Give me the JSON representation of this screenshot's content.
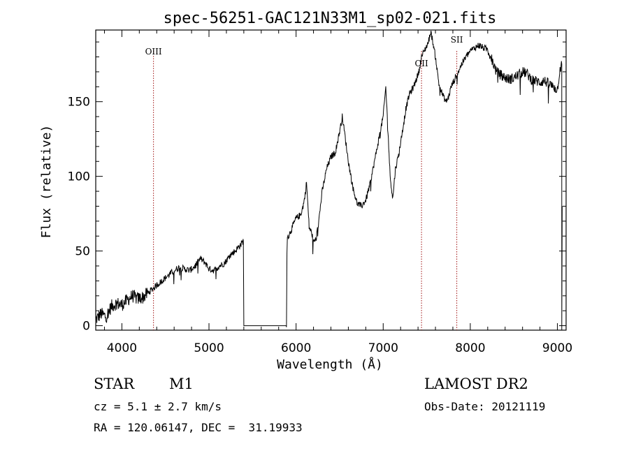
{
  "chart_data": {
    "type": "line",
    "title": "spec-56251-GAC121N33M1_sp02-021.fits",
    "xlabel": "Wavelength (Å)",
    "ylabel": "Flux (relative)",
    "xlim": [
      3700,
      9100
    ],
    "ylim": [
      -3,
      198
    ],
    "x_ticks": [
      4000,
      5000,
      6000,
      7000,
      8000,
      9000
    ],
    "y_ticks": [
      0,
      50,
      100,
      150
    ],
    "x_tick_labels": [
      "4000",
      "5000",
      "6000",
      "7000",
      "8000",
      "9000"
    ],
    "y_tick_labels": [
      "0",
      "50",
      "100",
      "150"
    ],
    "series": [
      {
        "x": [
          3700,
          3760,
          3820,
          3880,
          3940,
          4000,
          4060,
          4120,
          4180,
          4240,
          4300,
          4360,
          4420,
          4480,
          4540,
          4600,
          4660,
          4720,
          4780,
          4840,
          4900,
          4960,
          5000,
          5060,
          5120,
          5180,
          5240,
          5300,
          5360,
          5385,
          5395,
          5400,
          5500,
          5600,
          5700,
          5800,
          5890,
          5895,
          5900,
          5950,
          6000,
          6050,
          6080,
          6100,
          6120,
          6150,
          6180,
          6200,
          6230,
          6260,
          6300,
          6350,
          6400,
          6450,
          6500,
          6530,
          6560,
          6600,
          6650,
          6700,
          6750,
          6800,
          6850,
          6900,
          6950,
          7000,
          7030,
          7055,
          7080,
          7110,
          7140,
          7180,
          7220,
          7260,
          7300,
          7350,
          7380,
          7410,
          7440,
          7480,
          7520,
          7545,
          7570,
          7600,
          7640,
          7680,
          7720,
          7750,
          7780,
          7820,
          7860,
          7900,
          7950,
          8000,
          8050,
          8100,
          8150,
          8200,
          8250,
          8300,
          8350,
          8400,
          8450,
          8500,
          8550,
          8600,
          8650,
          8700,
          8750,
          8800,
          8850,
          8900,
          8950,
          9000,
          9030,
          9050
        ],
        "y": [
          4,
          8,
          6,
          13,
          15,
          14,
          17,
          20,
          18,
          19,
          22,
          25,
          28,
          31,
          34,
          37,
          39,
          38,
          37,
          40,
          45,
          42,
          38,
          37,
          40,
          42,
          47,
          50,
          54,
          56,
          57,
          0,
          0,
          0,
          0,
          0,
          0,
          50,
          58,
          65,
          72,
          74,
          80,
          86,
          96,
          66,
          62,
          56,
          58,
          70,
          90,
          105,
          113,
          116,
          130,
          140,
          128,
          110,
          93,
          82,
          80,
          84,
          95,
          110,
          125,
          140,
          160,
          130,
          100,
          85,
          105,
          115,
          130,
          145,
          155,
          160,
          165,
          170,
          180,
          185,
          190,
          197,
          190,
          180,
          162,
          155,
          150,
          153,
          160,
          165,
          170,
          175,
          180,
          184,
          186,
          188,
          186,
          185,
          178,
          170,
          168,
          166,
          165,
          166,
          168,
          170,
          169,
          165,
          164,
          163,
          164,
          162,
          160,
          158,
          172,
          175
        ]
      }
    ],
    "lines": [
      {
        "label": "OIII",
        "x": 4363
      },
      {
        "label": "OII",
        "x": 7440
      },
      {
        "label": "SII",
        "x": 7845
      }
    ]
  },
  "footer": {
    "class_label": "STAR",
    "subclass_label": "M1",
    "survey": "LAMOST DR2",
    "cz": "cz = 5.1 ± 2.7 km/s",
    "obs_date": "Obs-Date: 20121119",
    "coords": "RA = 120.06147, DEC =  31.19933"
  }
}
